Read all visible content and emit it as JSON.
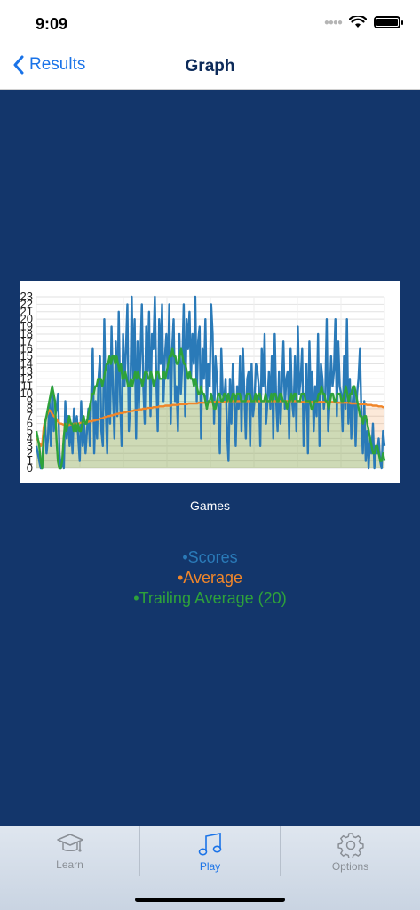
{
  "status": {
    "time": "9:09"
  },
  "nav": {
    "back_label": "Results",
    "title": "Graph"
  },
  "chart_data": {
    "type": "line",
    "x_label": "Games",
    "ylim": [
      0,
      23
    ],
    "y_ticks": [
      "0",
      "1",
      "2",
      "3",
      "4",
      "5",
      "6",
      "7",
      "8",
      "9",
      "10",
      "11",
      "12",
      "13",
      "14",
      "15",
      "16",
      "17",
      "18",
      "19",
      "20",
      "21",
      "22",
      "23"
    ],
    "grid": true,
    "legend_position": "bottom",
    "series": [
      {
        "name": "•Scores",
        "color": "#2a7ab8",
        "values": [
          3,
          2,
          1,
          0,
          0,
          5,
          6,
          2,
          4,
          9,
          3,
          11,
          5,
          7,
          8,
          10,
          2,
          0,
          1,
          0,
          9,
          4,
          7,
          3,
          6,
          2,
          8,
          5,
          7,
          4,
          1,
          9,
          3,
          6,
          2,
          5,
          8,
          3,
          10,
          16,
          2,
          9,
          4,
          12,
          15,
          5,
          3,
          20,
          8,
          2,
          14,
          6,
          19,
          10,
          4,
          17,
          7,
          21,
          9,
          3,
          18,
          11,
          16,
          22,
          5,
          9,
          23,
          12,
          20,
          4,
          17,
          8,
          15,
          22,
          11,
          6,
          19,
          13,
          21,
          7,
          18,
          16,
          23,
          12,
          5,
          20,
          14,
          22,
          9,
          15,
          18,
          12,
          22,
          6,
          16,
          20,
          9,
          11,
          5,
          18,
          10,
          14,
          22,
          7,
          20,
          16,
          21,
          12,
          18,
          14,
          23,
          9,
          17,
          19,
          4,
          16,
          12,
          20,
          8,
          14,
          11,
          22,
          18,
          6,
          15,
          12,
          8,
          2,
          16,
          10,
          9,
          12,
          5,
          1,
          12,
          6,
          14,
          9,
          3,
          11,
          8,
          15,
          5,
          16,
          10,
          4,
          12,
          13,
          3,
          14,
          7,
          9,
          14,
          13,
          11,
          3,
          16,
          11,
          18,
          6,
          9,
          13,
          8,
          15,
          4,
          18,
          9,
          5,
          13,
          6,
          11,
          17,
          8,
          12,
          13,
          4,
          16,
          9,
          7,
          15,
          5,
          19,
          10,
          12,
          16,
          3,
          8,
          14,
          2,
          17,
          9,
          13,
          5,
          11,
          7,
          18,
          3,
          14,
          12,
          8,
          10,
          20,
          5,
          9,
          15,
          11,
          13,
          20,
          7,
          17,
          11,
          10,
          5,
          15,
          8,
          20,
          6,
          12,
          4,
          9,
          11,
          3,
          10,
          12,
          16,
          7,
          2,
          9,
          1,
          5,
          0,
          4,
          2,
          6,
          0,
          3,
          2,
          4,
          1,
          0,
          5,
          3
        ]
      },
      {
        "name": "•Average",
        "color": "#f0862a",
        "values": [
          4.0,
          3.8,
          3.4,
          3.0,
          3.3,
          5.5,
          6.5,
          7.0,
          7.5,
          7.8,
          7.6,
          7.2,
          7.0,
          6.8,
          6.5,
          6.2,
          6.0,
          6.0,
          5.9,
          5.8,
          5.8,
          5.9,
          5.8,
          5.9,
          5.9,
          5.9,
          6.0,
          6.0,
          6.0,
          6.0,
          6.1,
          6.1,
          6.2,
          6.2,
          6.2,
          6.2,
          6.3,
          6.3,
          6.3,
          6.4,
          6.4,
          6.5,
          6.5,
          6.6,
          6.7,
          6.7,
          6.8,
          6.9,
          6.9,
          7.0,
          7.0,
          7.1,
          7.1,
          7.2,
          7.2,
          7.3,
          7.3,
          7.4,
          7.4,
          7.4,
          7.5,
          7.5,
          7.6,
          7.6,
          7.6,
          7.7,
          7.7,
          7.8,
          7.8,
          7.8,
          7.9,
          7.9,
          7.9,
          8.0,
          8.0,
          8.0,
          8.1,
          8.1,
          8.1,
          8.1,
          8.2,
          8.2,
          8.2,
          8.2,
          8.3,
          8.3,
          8.3,
          8.3,
          8.4,
          8.4,
          8.4,
          8.4,
          8.4,
          8.5,
          8.5,
          8.5,
          8.5,
          8.5,
          8.6,
          8.6,
          8.6,
          8.6,
          8.6,
          8.6,
          8.7,
          8.7,
          8.7,
          8.7,
          8.7,
          8.7,
          8.7,
          8.8,
          8.8,
          8.8,
          8.8,
          8.8,
          8.8,
          8.8,
          8.8,
          8.9,
          8.9,
          8.9,
          8.9,
          8.9,
          8.9,
          8.9,
          8.9,
          8.9,
          8.9,
          8.9,
          9.0,
          9.0,
          9.0,
          9.0,
          9.0,
          9.0,
          9.0,
          9.0,
          9.0,
          9.0,
          9.0,
          9.0,
          9.0,
          9.0,
          9.0,
          9.0,
          9.0,
          9.0,
          9.0,
          9.0,
          9.0,
          9.0,
          9.0,
          9.0,
          9.0,
          9.0,
          9.0,
          9.0,
          9.0,
          9.0,
          9.0,
          9.0,
          9.0,
          9.0,
          9.0,
          9.0,
          9.0,
          9.0,
          9.0,
          9.0,
          9.0,
          9.0,
          9.0,
          9.0,
          9.0,
          9.0,
          9.0,
          9.0,
          9.0,
          9.0,
          9.0,
          8.9,
          8.9,
          8.9,
          8.9,
          8.9,
          8.9,
          8.9,
          8.9,
          8.9,
          8.9,
          8.9,
          8.9,
          8.9,
          8.9,
          8.9,
          8.9,
          8.9,
          8.9,
          8.9,
          8.9,
          8.9,
          8.9,
          8.9,
          8.9,
          8.8,
          8.8,
          8.8,
          8.8,
          8.8,
          8.8,
          8.8,
          8.8,
          8.8,
          8.8,
          8.7,
          8.7,
          8.7,
          8.7,
          8.7,
          8.7,
          8.6,
          8.6,
          8.6,
          8.6,
          8.6,
          8.5,
          8.5,
          8.5,
          8.5,
          8.4,
          8.4,
          8.4,
          8.4,
          8.3,
          8.3,
          8.3,
          8.2,
          8.2
        ]
      },
      {
        "name": "•Trailing Average (20)",
        "color": "#2ea23a",
        "values": [
          5,
          4,
          3,
          1,
          0,
          4,
          6,
          7,
          8,
          9,
          10,
          11,
          10,
          9,
          4,
          1,
          0,
          0,
          1,
          4,
          6,
          5,
          6,
          7,
          6,
          6,
          5,
          6,
          5,
          6,
          5,
          5,
          6,
          7,
          6,
          6,
          7,
          8,
          9,
          10,
          10,
          11,
          11,
          12,
          12,
          12,
          11,
          12,
          13,
          14,
          14,
          15,
          14,
          15,
          15,
          14,
          15,
          14,
          13,
          14,
          12,
          12,
          13,
          12,
          11,
          11,
          12,
          11,
          12,
          13,
          12,
          13,
          12,
          12,
          11,
          12,
          13,
          13,
          12,
          12,
          13,
          12,
          11,
          12,
          13,
          13,
          12,
          12,
          12,
          13,
          12,
          13,
          14,
          15,
          15,
          16,
          15,
          15,
          14,
          14,
          15,
          16,
          15,
          14,
          14,
          13,
          12,
          13,
          12,
          12,
          11,
          12,
          11,
          10,
          10,
          11,
          10,
          10,
          9,
          8,
          9,
          9,
          10,
          9,
          8,
          8,
          9,
          10,
          10,
          9,
          9,
          10,
          10,
          9,
          10,
          9,
          9,
          10,
          10,
          9,
          10,
          10,
          10,
          9,
          9,
          9,
          9,
          10,
          10,
          10,
          9,
          9,
          9,
          10,
          9,
          10,
          10,
          9,
          9,
          9,
          10,
          9,
          9,
          9,
          10,
          9,
          10,
          10,
          9,
          9,
          10,
          10,
          9,
          9,
          9,
          8,
          9,
          9,
          10,
          9,
          10,
          10,
          9,
          9,
          9,
          10,
          10,
          10,
          9,
          9,
          9,
          9,
          8,
          8,
          9,
          9,
          9,
          10,
          10,
          11,
          10,
          10,
          9,
          9,
          8,
          9,
          10,
          10,
          9,
          9,
          10,
          10,
          10,
          9,
          9,
          10,
          11,
          10,
          9,
          10,
          10,
          11,
          11,
          10,
          9,
          8,
          7,
          7,
          6,
          7,
          7,
          6,
          5,
          4,
          3,
          2,
          2,
          3,
          3,
          2,
          1,
          1,
          2,
          1
        ]
      }
    ]
  },
  "tabs": [
    {
      "label": "Learn",
      "icon": "graduation-cap-icon"
    },
    {
      "label": "Play",
      "icon": "music-note-icon"
    },
    {
      "label": "Options",
      "icon": "gear-icon"
    }
  ]
}
